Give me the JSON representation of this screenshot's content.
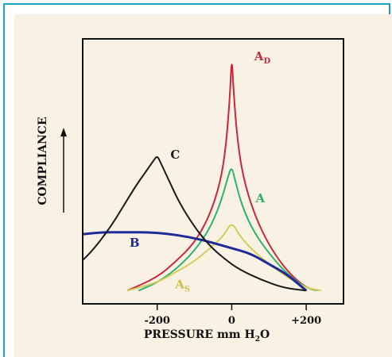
{
  "chart_data": {
    "type": "line",
    "ylabel": "COMPLIANCE",
    "xlabel_main": "PRESSURE mm H",
    "xlabel_sub": "2",
    "xlabel_tail": "O",
    "xticks": [
      {
        "value": -200,
        "label": "-200"
      },
      {
        "value": 0,
        "label": "0"
      },
      {
        "value": 200,
        "label": "+200"
      }
    ],
    "xlim": [
      -400,
      300
    ],
    "ylim": [
      0,
      100
    ],
    "colors": {
      "A_D": "#c8283c",
      "A": "#2eb36a",
      "A_S": "#d4cc5a",
      "B": "#1f2a9a",
      "C": "#1a1a1a"
    },
    "series": [
      {
        "name": "A_D",
        "label_main": "A",
        "label_sub": "D",
        "color": "#c8283c",
        "points": [
          [
            -280,
            5
          ],
          [
            -200,
            10
          ],
          [
            -150,
            16
          ],
          [
            -100,
            23
          ],
          [
            -60,
            33
          ],
          [
            -30,
            46
          ],
          [
            -15,
            60
          ],
          [
            -5,
            78
          ],
          [
            0,
            94
          ],
          [
            5,
            80
          ],
          [
            15,
            62
          ],
          [
            30,
            48
          ],
          [
            60,
            34
          ],
          [
            100,
            22
          ],
          [
            150,
            12
          ],
          [
            200,
            6
          ],
          [
            230,
            5
          ]
        ]
      },
      {
        "name": "A",
        "label_main": "A",
        "label_sub": "",
        "color": "#2eb36a",
        "points": [
          [
            -250,
            5
          ],
          [
            -200,
            8
          ],
          [
            -150,
            13
          ],
          [
            -100,
            20
          ],
          [
            -60,
            28
          ],
          [
            -30,
            38
          ],
          [
            -10,
            48
          ],
          [
            0,
            52
          ],
          [
            10,
            46
          ],
          [
            30,
            36
          ],
          [
            60,
            27
          ],
          [
            100,
            19
          ],
          [
            150,
            11
          ],
          [
            200,
            6
          ],
          [
            230,
            5
          ]
        ]
      },
      {
        "name": "A_S",
        "label_main": "A",
        "label_sub": "S",
        "color": "#d4cc5a",
        "points": [
          [
            -280,
            5
          ],
          [
            -200,
            8
          ],
          [
            -150,
            12
          ],
          [
            -100,
            16
          ],
          [
            -50,
            22
          ],
          [
            -20,
            26
          ],
          [
            0,
            31
          ],
          [
            20,
            26
          ],
          [
            50,
            21
          ],
          [
            100,
            15
          ],
          [
            150,
            10
          ],
          [
            200,
            6
          ],
          [
            240,
            5
          ]
        ]
      },
      {
        "name": "B",
        "label_main": "B",
        "label_sub": "",
        "color": "#1f2a9a",
        "points": [
          [
            -420,
            26
          ],
          [
            -350,
            27
          ],
          [
            -300,
            27
          ],
          [
            -200,
            27
          ],
          [
            -100,
            25
          ],
          [
            0,
            21
          ],
          [
            50,
            19
          ],
          [
            100,
            15
          ],
          [
            150,
            11
          ],
          [
            200,
            5
          ]
        ]
      },
      {
        "name": "C",
        "label_main": "C",
        "label_sub": "",
        "color": "#1a1a1a",
        "points": [
          [
            -420,
            14
          ],
          [
            -380,
            19
          ],
          [
            -330,
            28
          ],
          [
            -290,
            37
          ],
          [
            -260,
            44
          ],
          [
            -230,
            50
          ],
          [
            -210,
            54
          ],
          [
            -200,
            56
          ],
          [
            -190,
            53
          ],
          [
            -170,
            47
          ],
          [
            -140,
            38
          ],
          [
            -100,
            29
          ],
          [
            -60,
            22
          ],
          [
            -20,
            17
          ],
          [
            20,
            13
          ],
          [
            80,
            9
          ],
          [
            140,
            6
          ],
          [
            200,
            5
          ]
        ]
      }
    ]
  }
}
